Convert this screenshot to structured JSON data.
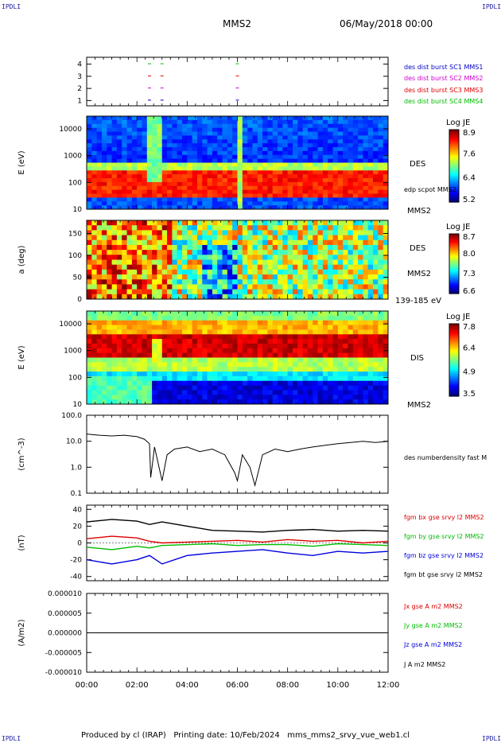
{
  "corners": {
    "tl": "IPDLI",
    "tr": "IPDLI",
    "bl": "IPDLI",
    "br": "IPDLI"
  },
  "header": {
    "spacecraft": "MMS2",
    "datetime": "06/May/2018 00:00"
  },
  "footer": "Produced by cl (IRAP)   Printing date: 10/Feb/2024   mms_mms2_srvy_vue_web1.cl",
  "time_axis": {
    "ticks": [
      "00:00",
      "02:00",
      "04:00",
      "06:00",
      "08:00",
      "10:00",
      "12:00"
    ]
  },
  "chart_data": [
    {
      "type": "scatter",
      "panel": "burst",
      "yticks": [
        "1",
        "2",
        "3",
        "4"
      ],
      "legend": [
        {
          "name": "des dist burst SC1 MMS1",
          "color": "#0000c8"
        },
        {
          "name": "des dist burst SC2 MMS2",
          "color": "#cc00cc"
        },
        {
          "name": "des dist burst SC3 MMS3",
          "color": "#dd0000"
        },
        {
          "name": "des dist burst SC4 MMS4",
          "color": "#00bb00"
        }
      ],
      "bursts": [
        {
          "sc": 1,
          "t": [
            2.5,
            3.0,
            6.0
          ]
        },
        {
          "sc": 2,
          "t": [
            2.5,
            3.0,
            6.0
          ]
        },
        {
          "sc": 3,
          "t": [
            2.5,
            3.0,
            6.0
          ]
        },
        {
          "sc": 4,
          "t": [
            2.5,
            3.0,
            6.0
          ]
        }
      ]
    },
    {
      "type": "heatmap",
      "panel": "des-energy",
      "ylabel": "E (eV)",
      "yscale": "log",
      "ylim": [
        10,
        30000
      ],
      "yticks": [
        "10",
        "100",
        "1000",
        "10000"
      ],
      "right_labels": [
        "DES",
        "edp scpot MMS2",
        "MMS2"
      ],
      "colorbar": {
        "title": "Log JE",
        "ticks": [
          "8.9",
          "7.6",
          "6.4",
          "5.2"
        ]
      }
    },
    {
      "type": "heatmap",
      "panel": "des-pitch",
      "ylabel": "a (deg)",
      "ylim": [
        0,
        180
      ],
      "yticks": [
        "0",
        "50",
        "100",
        "150"
      ],
      "right_labels": [
        "DES",
        "MMS2",
        "139-185 eV"
      ],
      "colorbar": {
        "title": "Log JE",
        "ticks": [
          "8.7",
          "8.0",
          "7.3",
          "6.6"
        ]
      }
    },
    {
      "type": "heatmap",
      "panel": "dis-energy",
      "ylabel": "E (eV)",
      "yscale": "log",
      "ylim": [
        10,
        30000
      ],
      "yticks": [
        "10",
        "100",
        "1000",
        "10000"
      ],
      "right_labels": [
        "DIS",
        "MMS2"
      ],
      "colorbar": {
        "title": "Log JE",
        "ticks": [
          "7.8",
          "6.4",
          "4.9",
          "3.5"
        ]
      }
    },
    {
      "type": "line",
      "panel": "density",
      "ylabel": "(cm^-3)",
      "yscale": "log",
      "ylim": [
        0.1,
        100
      ],
      "yticks": [
        "0.1",
        "1.0",
        "10.0",
        "100.0"
      ],
      "series": [
        {
          "name": "des numberdensity fast M",
          "color": "#000000"
        }
      ],
      "x": [
        0,
        0.5,
        1,
        1.5,
        2,
        2.3,
        2.5,
        2.55,
        2.7,
        3.0,
        3.2,
        3.5,
        4.0,
        4.5,
        5.0,
        5.5,
        5.9,
        6.0,
        6.2,
        6.5,
        6.7,
        7.0,
        7.5,
        8.0,
        8.5,
        9.0,
        9.5,
        10.0,
        10.5,
        11.0,
        11.5,
        12.0
      ],
      "y": [
        19,
        17,
        16,
        17,
        15,
        12,
        8,
        0.4,
        6,
        0.3,
        3,
        5,
        6,
        4,
        5,
        3,
        0.6,
        0.3,
        3,
        1,
        0.2,
        3,
        5,
        4,
        5,
        6,
        7,
        8,
        9,
        10,
        9,
        10
      ]
    },
    {
      "type": "line",
      "panel": "magnetic-field",
      "ylabel": "(nT)",
      "ylim": [
        -45,
        45
      ],
      "yticks": [
        "-40",
        "-20",
        "0",
        "20",
        "40"
      ],
      "series": [
        {
          "name": "fgm bx gse srvy l2 MMS2",
          "color": "#dd0000"
        },
        {
          "name": "fgm by gse srvy l2 MMS2",
          "color": "#00bb00"
        },
        {
          "name": "fgm bz gse srvy l2 MMS2",
          "color": "#0000dd"
        },
        {
          "name": "fgm bt gse srvy l2 MMS2",
          "color": "#000000"
        }
      ],
      "x": [
        0,
        1,
        2,
        2.5,
        3,
        4,
        5,
        6,
        7,
        8,
        9,
        10,
        11,
        12
      ],
      "values": [
        [
          5,
          8,
          6,
          2,
          0,
          1,
          2,
          3,
          1,
          4,
          2,
          3,
          0,
          2
        ],
        [
          -5,
          -8,
          -4,
          -6,
          -3,
          -2,
          -1,
          -3,
          -2,
          -2,
          -4,
          -1,
          -2,
          -3
        ],
        [
          -20,
          -25,
          -20,
          -15,
          -25,
          -15,
          -12,
          -10,
          -8,
          -12,
          -15,
          -10,
          -12,
          -10
        ],
        [
          25,
          28,
          26,
          22,
          25,
          20,
          15,
          14,
          13,
          15,
          16,
          14,
          15,
          14
        ]
      ]
    },
    {
      "type": "line",
      "panel": "current-density",
      "ylabel": "(A/m2)",
      "ylim": [
        -1e-05,
        1e-05
      ],
      "yticks": [
        "-0.000010",
        "-0.000005",
        "0.000000",
        "0.000005",
        "0.000010"
      ],
      "series": [
        {
          "name": "Jx gse A m2 MMS2",
          "color": "#dd0000"
        },
        {
          "name": "Jy gse A m2 MMS2",
          "color": "#00bb00"
        },
        {
          "name": "Jz gse A m2 MMS2",
          "color": "#0000dd"
        },
        {
          "name": "J A m2 MMS2",
          "color": "#000000"
        }
      ],
      "x": [
        0,
        12
      ],
      "values": [
        [
          0,
          0
        ],
        [
          0,
          0
        ],
        [
          0,
          0
        ],
        [
          0,
          0
        ]
      ]
    }
  ]
}
